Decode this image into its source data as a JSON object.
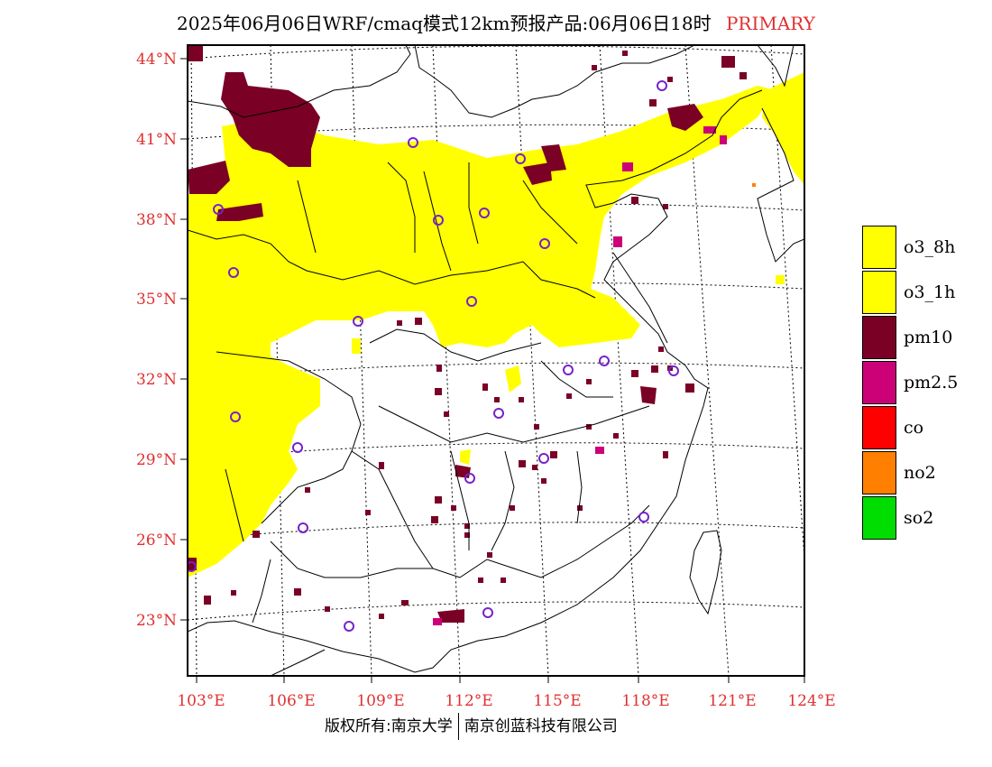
{
  "title": {
    "main": "2025年06月06日WRF/cmaq模式12km预报产品:06月06日18时",
    "tag": "PRIMARY"
  },
  "footer": {
    "left": "版权所有:南京大学",
    "right": "南京创蓝科技有限公司"
  },
  "axes": {
    "lat_labels": [
      "44°N",
      "41°N",
      "38°N",
      "35°N",
      "32°N",
      "29°N",
      "26°N",
      "23°N"
    ],
    "lon_labels": [
      "103°E",
      "106°E",
      "109°E",
      "112°E",
      "115°E",
      "118°E",
      "121°E",
      "124°E"
    ],
    "label_color": "#e03030"
  },
  "legend": [
    {
      "label": "o3_8h",
      "color": "#ffff00"
    },
    {
      "label": "o3_1h",
      "color": "#ffff00"
    },
    {
      "label": "pm10",
      "color": "#7a0026"
    },
    {
      "label": "pm2.5",
      "color": "#cc0077"
    },
    {
      "label": "co",
      "color": "#ff0000"
    },
    {
      "label": "no2",
      "color": "#ff8000"
    },
    {
      "label": "so2",
      "color": "#00dd00"
    }
  ]
}
